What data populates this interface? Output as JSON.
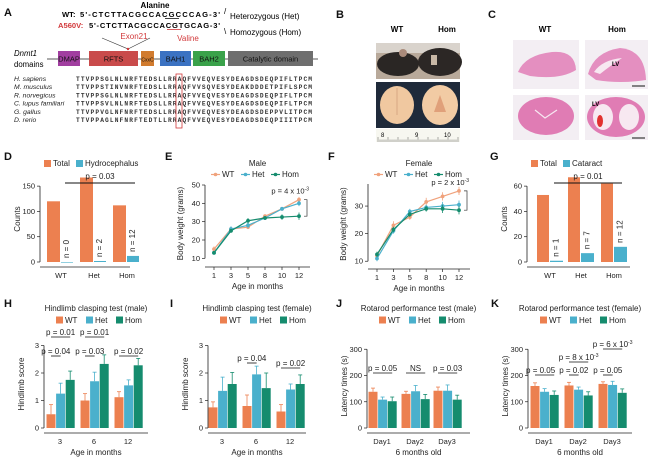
{
  "colors": {
    "wt": "#ec8050",
    "wt_line": "#f0a27c",
    "het": "#4ab0cc",
    "hom": "#158c6e",
    "red_text": "#d2393b"
  },
  "panel_labels": [
    "A",
    "B",
    "C",
    "D",
    "E",
    "F",
    "G",
    "H",
    "I",
    "J",
    "K"
  ],
  "panel_a": {
    "alanine": "Alanine",
    "wt_seq_label": "WT:",
    "wt_seq": "5'-CTCTTACGCCACGCCCAG-3'",
    "mut_seq_label": "A560V:",
    "mut_seq": "5'-CTCTTACGCCACGTGCAG-3'",
    "exon": "Exon21",
    "valine": "Valine",
    "het": "Heterozygous (Het)",
    "hom": "Homozygous (Hom)",
    "gene": "Dnmt1",
    "domains_label": "domains",
    "domains": [
      {
        "name": "DMAP",
        "color": "#a13ea0"
      },
      {
        "name": "RFTS",
        "color": "#c94b4b"
      },
      {
        "name": "CxxC",
        "color": "#d17b2e"
      },
      {
        "name": "BAH1",
        "color": "#3b72c2"
      },
      {
        "name": "BAH2",
        "color": "#3aa24a"
      },
      {
        "name": "Catalytic domain",
        "color": "#6e6e6e"
      }
    ],
    "alignment": [
      {
        "species": "H. sapiens",
        "seq": "TTVPPSGLNLNRFTEDSLLRRAQFVVEQVESYDEAGDSDEQPIFLTPCM"
      },
      {
        "species": "M. musculus",
        "seq": "TTVPPSTINVNRFTEDSLLRRAQFVVSQVESYDEAKDDDETPIFLSPCM"
      },
      {
        "species": "R. norvegicus",
        "seq": "TTVPPSGLNLNRFTEDSLLRRAQFVVEQVESYDEAGDSDEQPIFLTPCM"
      },
      {
        "species": "C. lupus familiari",
        "seq": "TTVPPSVLNLNRFTEDSLLRRAQFVVEQVESYDEAGDSDEQPIFLTPCM"
      },
      {
        "species": "G. gallus",
        "seq": "TTVPPVGLNFNRFTEDSLLRRAQFVVEQVESYDEAGDSDEPPVLITPCM"
      },
      {
        "species": "D. rerio",
        "seq": "TTVPPAGLNFNRFTEDTLLRRAQFVVEQVESYDEAGDSDEQPIIITPCM"
      }
    ]
  },
  "panel_b": {
    "wt": "WT",
    "hom": "Hom",
    "ruler": [
      "8",
      "9",
      "10"
    ]
  },
  "panel_c": {
    "wt": "WT",
    "hom": "Hom",
    "lv": "LV"
  },
  "chart_data": [
    {
      "panel": "D",
      "type": "bar",
      "categories": [
        "WT",
        "Het",
        "Hom"
      ],
      "series": [
        {
          "name": "Total",
          "values": [
            120,
            167,
            112
          ]
        },
        {
          "name": "Hydrocephalus",
          "values": [
            0,
            2,
            12
          ]
        }
      ],
      "bar_labels": [
        "n = 0",
        "n = 2",
        "n = 12"
      ],
      "xlabel": "",
      "ylabel": "Counts",
      "ylim": [
        0,
        170
      ],
      "yticks": [
        0,
        50,
        100,
        150
      ],
      "annotations": [
        {
          "text": "p = 0.03",
          "between": [
            "WT",
            "Hom"
          ]
        }
      ],
      "legend": "top"
    },
    {
      "panel": "E",
      "type": "line",
      "title": "Male",
      "x": [
        "1",
        "3",
        "5",
        "8",
        "10",
        "12"
      ],
      "series": [
        {
          "name": "WT",
          "values": [
            15,
            26,
            27,
            33,
            37,
            42
          ],
          "err": [
            1.5,
            1,
            1,
            1,
            1,
            1.5
          ]
        },
        {
          "name": "Het",
          "values": [
            13,
            26,
            28,
            32,
            37,
            40
          ],
          "err": [
            1,
            1.5,
            1.5,
            1,
            1,
            1.5
          ]
        },
        {
          "name": "Hom",
          "values": [
            13,
            25,
            30.5,
            32,
            32.5,
            33
          ],
          "err": [
            1,
            1,
            1.5,
            1,
            1.5,
            2
          ]
        }
      ],
      "xlabel": "Age in months",
      "ylabel": "Body weight (grams)",
      "ylim": [
        8,
        50
      ],
      "yticks": [
        10,
        20,
        30,
        40,
        50
      ],
      "annotations": [
        {
          "text": "p = 4 x 10",
          "sup": "-3"
        }
      ],
      "legend": "top"
    },
    {
      "panel": "F",
      "type": "line",
      "title": "Female",
      "x": [
        "1",
        "3",
        "5",
        "8",
        "10",
        "12"
      ],
      "series": [
        {
          "name": "WT",
          "values": [
            12,
            23,
            26,
            31.5,
            33.5,
            35.5
          ],
          "err": [
            1,
            1.5,
            1,
            1.5,
            1.5,
            1.5
          ]
        },
        {
          "name": "Het",
          "values": [
            11,
            21,
            28,
            29.5,
            30,
            30.5
          ],
          "err": [
            1,
            1,
            1,
            1,
            1.5,
            1.5
          ]
        },
        {
          "name": "Hom",
          "values": [
            12.5,
            21.5,
            27,
            29,
            29,
            28.5
          ],
          "err": [
            1,
            1,
            1,
            1,
            1.5,
            1.5
          ]
        }
      ],
      "xlabel": "Age in months",
      "ylabel": "Body weight (grams)",
      "ylim": [
        9,
        38
      ],
      "yticks": [
        10,
        20,
        30
      ],
      "annotations": [
        {
          "text": "p = 2 x 10",
          "sup": "-3"
        }
      ],
      "legend": "top"
    },
    {
      "panel": "G",
      "type": "bar",
      "categories": [
        "WT",
        "Het",
        "Hom"
      ],
      "series": [
        {
          "name": "Total",
          "values": [
            53,
            67,
            62
          ]
        },
        {
          "name": "Cataract",
          "values": [
            1,
            7,
            12
          ]
        }
      ],
      "bar_labels": [
        "n = 1",
        "n = 7",
        "n = 12"
      ],
      "xlabel": "",
      "ylabel": "Counts",
      "ylim": [
        0,
        68
      ],
      "yticks": [
        0,
        20,
        40,
        60
      ],
      "annotations": [
        {
          "text": "p = 0.01",
          "between": [
            "WT",
            "Hom"
          ]
        }
      ],
      "legend": "top"
    },
    {
      "panel": "H",
      "type": "bar",
      "title": "Hindlimb clasping test (male)",
      "categories": [
        "3",
        "6",
        "12"
      ],
      "series": [
        {
          "name": "WT",
          "values": [
            0.5,
            1.0,
            1.12
          ],
          "err": [
            0.35,
            0.25,
            0.2
          ]
        },
        {
          "name": "Het",
          "values": [
            1.25,
            1.7,
            1.55
          ],
          "err": [
            0.38,
            0.33,
            0.2
          ]
        },
        {
          "name": "Hom",
          "values": [
            1.75,
            2.33,
            2.28
          ],
          "err": [
            0.32,
            0.33,
            0.25
          ]
        }
      ],
      "xlabel": "Age in months",
      "ylabel": "Hindlimb score",
      "ylim": [
        0,
        3.2
      ],
      "yticks": [
        0,
        1,
        2,
        3
      ],
      "annotations": [
        {
          "text": "p = 0.01",
          "group": "3",
          "between": [
            "WT",
            "Hom"
          ]
        },
        {
          "text": "p = 0.04",
          "group": "3",
          "between": [
            "WT",
            "Het"
          ]
        },
        {
          "text": "p = 0.01",
          "group": "6",
          "between": [
            "WT",
            "Hom"
          ]
        },
        {
          "text": "p = 0.03",
          "group": "6",
          "between": [
            "WT",
            "Het"
          ]
        },
        {
          "text": "p = 0.02",
          "group": "12",
          "between": [
            "WT",
            "Hom"
          ]
        }
      ],
      "legend": "top"
    },
    {
      "panel": "I",
      "type": "bar",
      "title": "Hindlimb clasping test (female)",
      "categories": [
        "3",
        "6",
        "12"
      ],
      "series": [
        {
          "name": "WT",
          "values": [
            0.75,
            0.8,
            0.6
          ],
          "err": [
            0.2,
            0.4,
            0.25
          ]
        },
        {
          "name": "Het",
          "values": [
            1.35,
            1.95,
            1.4
          ],
          "err": [
            0.5,
            0.3,
            0.2
          ]
        },
        {
          "name": "Hom",
          "values": [
            1.6,
            1.45,
            1.6
          ],
          "err": [
            0.42,
            0.55,
            0.33
          ]
        }
      ],
      "xlabel": "Age in months",
      "ylabel": "Hindlimb score",
      "ylim": [
        0,
        3.2
      ],
      "yticks": [
        0,
        1,
        2,
        3
      ],
      "annotations": [
        {
          "text": "p = 0.04",
          "group": "6",
          "between": [
            "WT",
            "Het"
          ]
        },
        {
          "text": "p = 0.02",
          "group": "12",
          "between": [
            "WT",
            "Hom"
          ]
        }
      ],
      "legend": "top"
    },
    {
      "panel": "J",
      "type": "bar",
      "title": "Rotarod performance test (male)",
      "categories": [
        "Day1",
        "Day2",
        "Day3"
      ],
      "series": [
        {
          "name": "WT",
          "values": [
            138,
            130,
            142
          ],
          "err": [
            14,
            10,
            14
          ]
        },
        {
          "name": "Het",
          "values": [
            108,
            140,
            142
          ],
          "err": [
            10,
            22,
            22
          ]
        },
        {
          "name": "Hom",
          "values": [
            102,
            110,
            108
          ],
          "err": [
            16,
            18,
            17
          ]
        }
      ],
      "xlabel": "6 months old",
      "ylabel": "Latency times (s)",
      "ylim": [
        0,
        320
      ],
      "yticks": [
        0,
        100,
        200,
        300
      ],
      "annotations": [
        {
          "text": "p = 0.05",
          "group": "Day1",
          "between": [
            "WT",
            "Hom"
          ]
        },
        {
          "text": "NS",
          "group": "Day2",
          "between": [
            "WT",
            "Hom"
          ]
        },
        {
          "text": "p = 0.03",
          "group": "Day3",
          "between": [
            "WT",
            "Hom"
          ]
        }
      ],
      "legend": "top"
    },
    {
      "panel": "K",
      "type": "bar",
      "title": "Rotarod performance test (female)",
      "categories": [
        "Day1",
        "Day2",
        "Day3"
      ],
      "series": [
        {
          "name": "WT",
          "values": [
            160,
            162,
            168
          ],
          "err": [
            12,
            12,
            8
          ]
        },
        {
          "name": "Het",
          "values": [
            138,
            146,
            164
          ],
          "err": [
            12,
            10,
            14
          ]
        },
        {
          "name": "Hom",
          "values": [
            126,
            124,
            134
          ],
          "err": [
            15,
            14,
            15
          ]
        }
      ],
      "xlabel": "6 months old",
      "ylabel": "Latency times (s)",
      "ylim": [
        0,
        320
      ],
      "yticks": [
        0,
        100,
        200,
        300
      ],
      "annotations": [
        {
          "text": "p = 0.05",
          "group": "Day1",
          "between": [
            "WT",
            "Hom"
          ]
        },
        {
          "text": "p = 0.02",
          "group": "Day2",
          "between": [
            "WT",
            "Het"
          ]
        },
        {
          "text": "p = 8 x 10",
          "sup": "-3",
          "group": "Day2",
          "between": [
            "WT",
            "Hom"
          ]
        },
        {
          "text": "p = 0.05",
          "group": "Day3",
          "between": [
            "WT",
            "Het"
          ]
        },
        {
          "text": "p = 6 x 10",
          "sup": "-3",
          "group": "Day3",
          "between": [
            "WT",
            "Hom"
          ]
        }
      ],
      "legend": "top"
    }
  ]
}
